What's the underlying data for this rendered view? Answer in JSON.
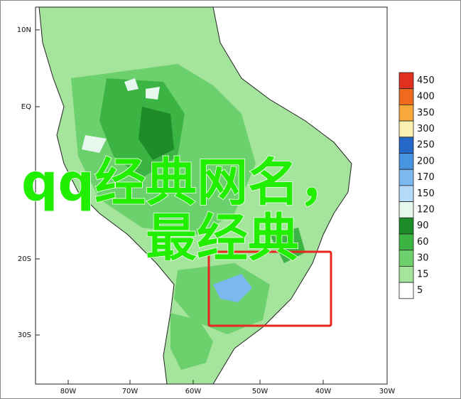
{
  "map": {
    "lat_labels": [
      "10N",
      "EQ",
      "20S",
      "30S"
    ],
    "lon_labels": [
      "80W",
      "70W",
      "60W",
      "50W",
      "40W",
      "30W"
    ],
    "legend": [
      {
        "label": "450",
        "color": "#e0301e"
      },
      {
        "label": "400",
        "color": "#f06a1e"
      },
      {
        "label": "350",
        "color": "#f8a838"
      },
      {
        "label": "300",
        "color": "#faf0b0"
      },
      {
        "label": "250",
        "color": "#2468c8"
      },
      {
        "label": "200",
        "color": "#4894e0"
      },
      {
        "label": "170",
        "color": "#7cb8f0"
      },
      {
        "label": "150",
        "color": "#b4daf8"
      },
      {
        "label": "120",
        "color": "#e6f8ee"
      },
      {
        "label": "90",
        "color": "#1e8c28"
      },
      {
        "label": "60",
        "color": "#3cb444"
      },
      {
        "label": "30",
        "color": "#6cd06c"
      },
      {
        "label": "15",
        "color": "#a4e49c"
      },
      {
        "label": "5",
        "color": "#ffffff"
      }
    ],
    "overlay": {
      "line1": "qq经典网名，",
      "line2": "最经典"
    }
  }
}
